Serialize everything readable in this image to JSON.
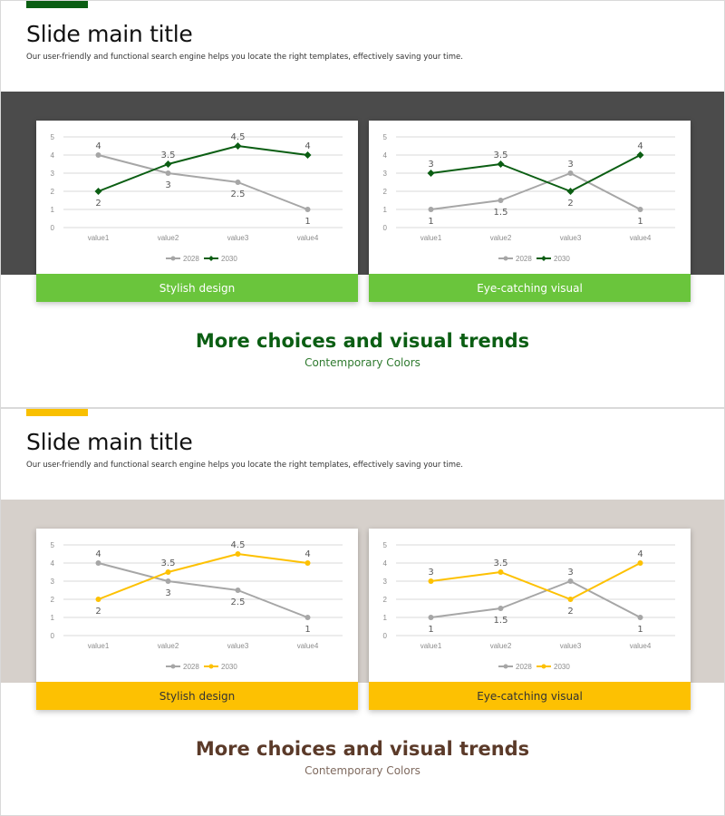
{
  "slides": [
    {
      "id": "slide-1",
      "title": "Slide main title",
      "subtitle": "Our user-friendly and functional search engine helps you locate the right templates, effectively saving your time.",
      "tagline": "More choices and visual trends",
      "tagline_sub": "Contemporary Colors",
      "colors": {
        "accent": "#0b5e13",
        "band": "#4b4b4b",
        "caption_bg": "#6ac53c",
        "caption_text": "#ffffff",
        "tagline": "#0b5e13",
        "tagline_sub": "#2f7a2f",
        "series_2028": "#a6a6a6",
        "series_2030": "#0b5e13"
      },
      "captions": [
        "Stylish design",
        "Eye-catching visual"
      ]
    },
    {
      "id": "slide-2",
      "title": "Slide main title",
      "subtitle": "Our user-friendly and functional search engine helps you locate the right templates, effectively saving your time.",
      "tagline": "More choices and visual trends",
      "tagline_sub": "Contemporary Colors",
      "colors": {
        "accent": "#f9c000",
        "band": "#d6d0cb",
        "caption_bg": "#fdc102",
        "caption_text": "#333333",
        "tagline": "#5b3a29",
        "tagline_sub": "#7f6a5f",
        "series_2028": "#a6a6a6",
        "series_2030": "#fdc102"
      },
      "captions": [
        "Stylish design",
        "Eye-catching visual"
      ]
    }
  ],
  "chart_data": [
    {
      "type": "line",
      "categories": [
        "value1",
        "value2",
        "value3",
        "value4"
      ],
      "series": [
        {
          "name": "2028",
          "values": [
            4,
            3,
            2.5,
            1
          ],
          "marker": "circle"
        },
        {
          "name": "2030",
          "values": [
            2,
            3.5,
            4.5,
            4
          ],
          "marker": "diamond"
        }
      ],
      "ylim": [
        0,
        5
      ],
      "yticks": [
        0,
        1,
        2,
        3,
        4,
        5
      ],
      "legend": "bottom",
      "grid": true
    },
    {
      "type": "line",
      "categories": [
        "value1",
        "value2",
        "value3",
        "value4"
      ],
      "series": [
        {
          "name": "2028",
          "values": [
            1,
            1.5,
            3,
            1
          ],
          "marker": "circle"
        },
        {
          "name": "2030",
          "values": [
            3,
            3.5,
            2,
            4
          ],
          "marker": "diamond"
        }
      ],
      "ylim": [
        0,
        5
      ],
      "yticks": [
        0,
        1,
        2,
        3,
        4,
        5
      ],
      "legend": "bottom",
      "grid": true
    },
    {
      "type": "line",
      "categories": [
        "value1",
        "value2",
        "value3",
        "value4"
      ],
      "series": [
        {
          "name": "2028",
          "values": [
            4,
            3,
            2.5,
            1
          ],
          "marker": "circle"
        },
        {
          "name": "2030",
          "values": [
            2,
            3.5,
            4.5,
            4
          ],
          "marker": "circle"
        }
      ],
      "ylim": [
        0,
        5
      ],
      "yticks": [
        0,
        1,
        2,
        3,
        4,
        5
      ],
      "legend": "bottom",
      "grid": true
    },
    {
      "type": "line",
      "categories": [
        "value1",
        "value2",
        "value3",
        "value4"
      ],
      "series": [
        {
          "name": "2028",
          "values": [
            1,
            1.5,
            3,
            1
          ],
          "marker": "circle"
        },
        {
          "name": "2030",
          "values": [
            3,
            3.5,
            2,
            4
          ],
          "marker": "circle"
        }
      ],
      "ylim": [
        0,
        5
      ],
      "yticks": [
        0,
        1,
        2,
        3,
        4,
        5
      ],
      "legend": "bottom",
      "grid": true
    }
  ]
}
